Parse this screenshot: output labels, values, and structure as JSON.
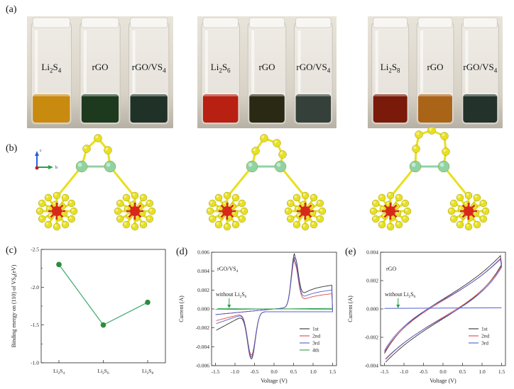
{
  "panels": {
    "a": "(a)",
    "b": "(b)",
    "c": "(c)",
    "d": "(d)",
    "e": "(e)"
  },
  "photos": [
    {
      "labels": [
        {
          "main": "Li",
          "sub": "2",
          "main2": "S",
          "sub2": "4"
        },
        {
          "main": "rGO"
        },
        {
          "main": "rGO/VS",
          "sub": "4"
        }
      ],
      "liquid_colors": [
        "#c98a10",
        "#1d3a1f",
        "#203228"
      ]
    },
    {
      "labels": [
        {
          "main": "Li",
          "sub": "2",
          "main2": "S",
          "sub2": "6"
        },
        {
          "main": "rGO"
        },
        {
          "main": "rGO/VS",
          "sub": "4"
        }
      ],
      "liquid_colors": [
        "#b82012",
        "#2a2a14",
        "#35403a"
      ]
    },
    {
      "labels": [
        {
          "main": "Li",
          "sub": "2",
          "main2": "S",
          "sub2": "8"
        },
        {
          "main": "rGO"
        },
        {
          "main": "rGO/VS",
          "sub": "4"
        }
      ],
      "liquid_colors": [
        "#7a1a0a",
        "#a96418",
        "#23322a"
      ]
    }
  ],
  "axes_triad": {
    "c": "c",
    "b": "b"
  },
  "colors": {
    "sulfur": "#e8e020",
    "vanadium": "#8fd3a3",
    "lithium_core": "#d8281a",
    "cv_black": "#333333",
    "cv_red": "#e04848",
    "cv_blue": "#5060d0",
    "cv_green": "#30a050",
    "marker": "#2e8b3e",
    "line": "#3aa86a"
  },
  "chart_data": [
    {
      "type": "scatter",
      "panel": "c",
      "categories": [
        "Li2S4",
        "Li2S6",
        "Li2S8"
      ],
      "category_labels": [
        {
          "main": "Li",
          "sub": "2",
          "main2": "S",
          "sub2": "4"
        },
        {
          "main": "Li",
          "sub": "2",
          "main2": "S",
          "sub2": "6"
        },
        {
          "main": "Li",
          "sub": "2",
          "main2": "S",
          "sub2": "8"
        }
      ],
      "values": [
        -2.3,
        -1.5,
        -1.8
      ],
      "ylabel": "Binding energy on (110) of VS4(eV)",
      "ylim": [
        -2.5,
        -1.0
      ],
      "yticks": [
        "-2.5",
        "-2.0",
        "-1.5",
        "-1.0"
      ],
      "grid": false
    },
    {
      "type": "line",
      "panel": "d",
      "title_in_plot": "rGO/VS4",
      "annotation": "without Li2S6",
      "xlabel": "Voltage (V)",
      "ylabel": "Current (A)",
      "xlim": [
        -1.6,
        1.6
      ],
      "ylim": [
        -0.006,
        0.006
      ],
      "xticks": [
        "-1.5",
        "-1.0",
        "-0.5",
        "0.0",
        "0.5",
        "1.0",
        "1.5"
      ],
      "yticks": [
        "-0.006",
        "-0.004",
        "-0.002",
        "0.000",
        "0.002",
        "0.004",
        "0.006"
      ],
      "legend": "bottom-right",
      "series": [
        {
          "name": "1st",
          "color": "#333333",
          "peak_ox": 0.0057,
          "peak_red": -0.005,
          "hold": 0.0015,
          "tail": -0.0025
        },
        {
          "name": "2nd",
          "color": "#e04848",
          "peak_ox": 0.0051,
          "peak_red": -0.0046,
          "hold": 0.0008,
          "tail": -0.0012
        },
        {
          "name": "3rd",
          "color": "#5060d0",
          "peak_ox": 0.0053,
          "peak_red": -0.0048,
          "hold": 0.0011,
          "tail": -0.0016
        },
        {
          "name": "4th",
          "color": "#30a050",
          "peak_ox": 0.0,
          "peak_red": 0.0,
          "hold": 0.0001,
          "tail": 0.0
        }
      ]
    },
    {
      "type": "line",
      "panel": "e",
      "title_in_plot": "rGO",
      "annotation": "without Li2S6",
      "xlabel": "Voltage (V)",
      "ylabel": "Current (A)",
      "xlim": [
        -1.6,
        1.6
      ],
      "ylim": [
        -0.004,
        0.004
      ],
      "xticks": [
        "-1.5",
        "-1.0",
        "-0.5",
        "0.0",
        "0.5",
        "1.0",
        "1.5"
      ],
      "yticks": [
        "-0.004",
        "-0.002",
        "0.000",
        "0.002",
        "0.004"
      ],
      "legend": "bottom-right",
      "series": [
        {
          "name": "1st",
          "color": "#333333"
        },
        {
          "name": "2nd",
          "color": "#e04848"
        },
        {
          "name": "3rd",
          "color": "#5060d0"
        }
      ]
    }
  ]
}
